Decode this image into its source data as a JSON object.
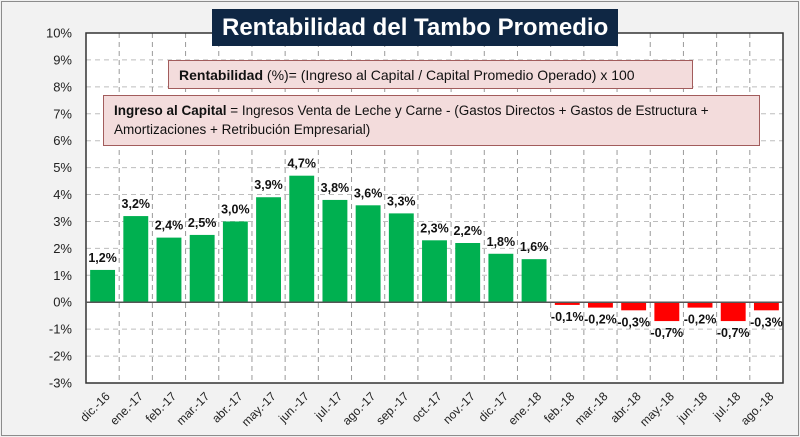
{
  "title": "Rentabilidad del Tambo Promedio",
  "formula_rentabilidad": {
    "term": "Rentabilidad",
    "definition": " (%)= (Ingreso al Capital / Capital Promedio Operado) x 100"
  },
  "formula_ingreso": {
    "term": "Ingreso al Capital",
    "definition": " = Ingresos Venta de Leche y Carne  -  (Gastos Directos  +  Gastos de Estructura  +  Amortizaciones  +  Retribución Empresarial)"
  },
  "colors": {
    "positive": "#00b050",
    "negative": "#ff0000",
    "title_bg": "#0f2744",
    "box_bg": "#f3dcdc"
  },
  "chart_data": {
    "type": "bar",
    "title": "Rentabilidad del Tambo Promedio",
    "xlabel": "",
    "ylabel": "",
    "ylim": [
      -3,
      10
    ],
    "y_ticks": [
      "10%",
      "9%",
      "8%",
      "7%",
      "6%",
      "5%",
      "4%",
      "3%",
      "2%",
      "1%",
      "0%",
      "-1%",
      "-2%",
      "-3%"
    ],
    "grid": true,
    "legend": "none",
    "categories": [
      "dic.-16",
      "ene.-17",
      "feb.-17",
      "mar.-17",
      "abr.-17",
      "may.-17",
      "jun.-17",
      "jul.-17",
      "ago.-17",
      "sep.-17",
      "oct.-17",
      "nov.-17",
      "dic.-17",
      "ene.-18",
      "feb.-18",
      "mar.-18",
      "abr.-18",
      "may.-18",
      "jun.-18",
      "jul.-18",
      "ago.-18"
    ],
    "values": [
      1.2,
      3.2,
      2.4,
      2.5,
      3.0,
      3.9,
      4.7,
      3.8,
      3.6,
      3.3,
      2.3,
      2.2,
      1.8,
      1.6,
      -0.1,
      -0.2,
      -0.3,
      -0.7,
      -0.2,
      -0.7,
      -0.3
    ],
    "data_labels": [
      "1,2%",
      "3,2%",
      "2,4%",
      "2,5%",
      "3,0%",
      "3,9%",
      "4,7%",
      "3,8%",
      "3,6%",
      "3,3%",
      "2,3%",
      "2,2%",
      "1,8%",
      "1,6%",
      "-0,1%",
      "-0,2%",
      "-0,3%",
      "-0,7%",
      "-0,2%",
      "-0,7%",
      "-0,3%"
    ]
  }
}
